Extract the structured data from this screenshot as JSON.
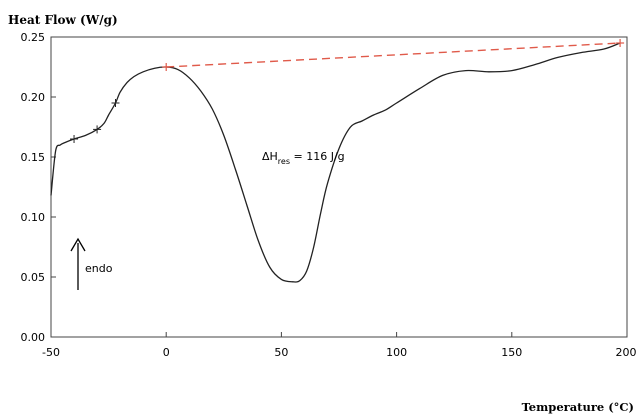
{
  "chart_data": {
    "type": "line",
    "ylabel": "Heat Flow (W/g)",
    "xlabel": "Temperature (°C)",
    "xlim": [
      -50,
      200
    ],
    "ylim": [
      0.0,
      0.25
    ],
    "xticks": [
      -50,
      0,
      50,
      100,
      150,
      200
    ],
    "xtick_labels": [
      "-50",
      "0",
      "50",
      "100",
      "150",
      "200"
    ],
    "yticks": [
      0.0,
      0.05,
      0.1,
      0.15,
      0.2,
      0.25
    ],
    "ytick_labels": [
      "0.00",
      "0.05",
      "0.10",
      "0.15",
      "0.20",
      "0.25"
    ],
    "grid": false,
    "series": [
      {
        "color": "#222222",
        "x": [
          -50,
          -48,
          -46,
          -44,
          -40,
          -35,
          -30,
          -27,
          -25,
          -22,
          -20,
          -17,
          -14,
          -10,
          -5,
          0,
          5,
          10,
          15,
          20,
          25,
          30,
          35,
          40,
          45,
          50,
          55,
          58,
          61,
          64,
          67,
          70,
          75,
          80,
          85,
          90,
          95,
          100,
          110,
          120,
          130,
          140,
          150,
          160,
          170,
          180,
          190,
          197
        ],
        "y": [
          0.118,
          0.155,
          0.16,
          0.162,
          0.165,
          0.168,
          0.173,
          0.178,
          0.185,
          0.195,
          0.204,
          0.212,
          0.217,
          0.221,
          0.224,
          0.225,
          0.223,
          0.216,
          0.205,
          0.19,
          0.168,
          0.14,
          0.11,
          0.08,
          0.058,
          0.048,
          0.046,
          0.047,
          0.055,
          0.075,
          0.103,
          0.128,
          0.157,
          0.175,
          0.18,
          0.185,
          0.189,
          0.195,
          0.207,
          0.218,
          0.222,
          0.221,
          0.222,
          0.227,
          0.233,
          0.237,
          0.24,
          0.245
        ]
      },
      {
        "color": "#e05a4a",
        "style": "dashed",
        "x": [
          0,
          197
        ],
        "y": [
          0.225,
          0.245
        ]
      }
    ],
    "annotations": [
      {
        "id": "enthalpy",
        "main": "ΔH",
        "sub": "res",
        "rest": " = 116 J/g"
      },
      {
        "id": "endo",
        "text": "endo"
      }
    ]
  }
}
